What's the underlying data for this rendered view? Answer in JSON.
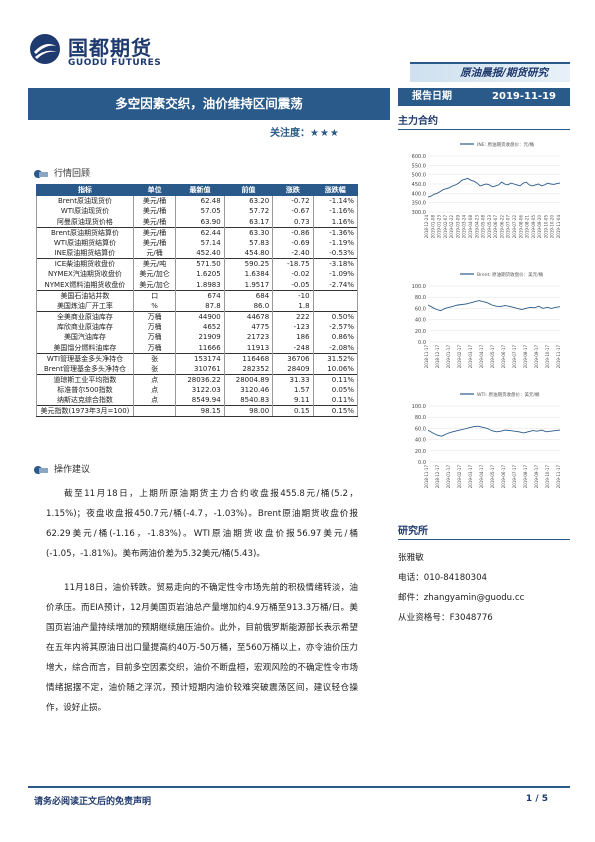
{
  "header": {
    "logo_cn": "国都期货",
    "logo_en": "GUODU FUTURES",
    "report_type": "原油晨报/期货研究",
    "title": "多空因素交织，油价维持区间震荡",
    "focus_label": "关注度：",
    "focus_stars": "★★★",
    "date_label": "报告日期",
    "date_value": "2019-11-19",
    "main_contract": "主力合约"
  },
  "sections": {
    "quote_review": "行情回顾",
    "operation": "操作建议",
    "researcher": "研究所"
  },
  "table": {
    "headers": [
      "指标",
      "单位",
      "最新值",
      "前值",
      "涨跌",
      "涨跌幅"
    ],
    "rows": [
      {
        "name": "Brent原油现货价",
        "unit": "美元/桶",
        "latest": "62.48",
        "prev": "63.20",
        "change": "-0.72",
        "pct": "-1.14%"
      },
      {
        "name": "WTI原油现货价",
        "unit": "美元/桶",
        "latest": "57.05",
        "prev": "57.72",
        "change": "-0.67",
        "pct": "-1.16%"
      },
      {
        "name": "阿曼原油现货价格",
        "unit": "美元/桶",
        "latest": "63.90",
        "prev": "63.17",
        "change": "0.73",
        "pct": "1.16%"
      },
      {
        "name": "Brent原油期货结算价",
        "unit": "美元/桶",
        "latest": "62.44",
        "prev": "63.30",
        "change": "-0.86",
        "pct": "-1.36%",
        "group_start": true
      },
      {
        "name": "WTI原油期货结算价",
        "unit": "美元/桶",
        "latest": "57.14",
        "prev": "57.83",
        "change": "-0.69",
        "pct": "-1.19%"
      },
      {
        "name": "INE原油期货结算价",
        "unit": "元/桶",
        "latest": "452.40",
        "prev": "454.80",
        "change": "-2.40",
        "pct": "-0.53%"
      },
      {
        "name": "ICE柴油期货收盘价",
        "unit": "美元/吨",
        "latest": "571.50",
        "prev": "590.25",
        "change": "-18.75",
        "pct": "-3.18%",
        "group_start": true
      },
      {
        "name": "NYMEX汽油期货收盘价",
        "unit": "美元/加仑",
        "latest": "1.6205",
        "prev": "1.6384",
        "change": "-0.02",
        "pct": "-1.09%"
      },
      {
        "name": "NYMEX燃料油期货收盘价",
        "unit": "美元/加仑",
        "latest": "1.8983",
        "prev": "1.9517",
        "change": "-0.05",
        "pct": "-2.74%"
      },
      {
        "name": "美国石油钻井数",
        "unit": "口",
        "latest": "674",
        "prev": "684",
        "change": "-10",
        "pct": "",
        "group_start": true
      },
      {
        "name": "美国炼油厂开工率",
        "unit": "%",
        "latest": "87.8",
        "prev": "86.0",
        "change": "1.8",
        "pct": ""
      },
      {
        "name": "全美商业原油库存",
        "unit": "万桶",
        "latest": "44900",
        "prev": "44678",
        "change": "222",
        "pct": "0.50%",
        "group_start": true
      },
      {
        "name": "库欣商业原油库存",
        "unit": "万桶",
        "latest": "4652",
        "prev": "4775",
        "change": "-123",
        "pct": "-2.57%"
      },
      {
        "name": "美国汽油库存",
        "unit": "万桶",
        "latest": "21909",
        "prev": "21723",
        "change": "186",
        "pct": "0.86%"
      },
      {
        "name": "美国馏分燃料油库存",
        "unit": "万桶",
        "latest": "11666",
        "prev": "11913",
        "change": "-248",
        "pct": "-2.08%"
      },
      {
        "name": "WTI管理基金多头净持仓",
        "unit": "张",
        "latest": "153174",
        "prev": "116468",
        "change": "36706",
        "pct": "31.52%",
        "group_start": true
      },
      {
        "name": "Brent管理基金多头净持仓",
        "unit": "张",
        "latest": "310761",
        "prev": "282352",
        "change": "28409",
        "pct": "10.06%"
      },
      {
        "name": "道琼斯工业平均指数",
        "unit": "点",
        "latest": "28036.22",
        "prev": "28004.89",
        "change": "31.33",
        "pct": "0.11%",
        "group_start": true
      },
      {
        "name": "标准普尔500指数",
        "unit": "点",
        "latest": "3122.03",
        "prev": "3120.46",
        "change": "1.57",
        "pct": "0.05%"
      },
      {
        "name": "纳斯达克综合指数",
        "unit": "点",
        "latest": "8549.94",
        "prev": "8540.83",
        "change": "9.11",
        "pct": "0.11%"
      },
      {
        "name": "美元指数(1973年3月=100)",
        "unit": "",
        "latest": "98.15",
        "prev": "98.00",
        "change": "0.15",
        "pct": "0.15%",
        "group_start": true
      }
    ]
  },
  "paragraphs": [
    "截至11月18日，上期所原油期货主力合约收盘报455.8元/桶(5.2，1.15%)；夜盘收盘报450.7元/桶(-4.7，-1.03%)。Brent原油期货收盘价报62.29美元/桶(-1.16，-1.83%)。WTI原油期货收盘价报56.97美元/桶(-1.05，-1.81%)。美布两油价差为5.32美元/桶(5.43)。",
    "11月18日，油价转跌。贸易走向的不确定性令市场先前的积极情绪转淡，油价承压。而EIA预计，12月美国页岩油总产量增加约4.9万桶至913.3万桶/日。美国页岩油产量持续增加的预期继续施压油价。此外，目前俄罗斯能源部长表示希望在五年内将其原油日出口量提高约40万-50万桶，至560万桶以上，亦令油价压力增大，综合而言，目前多空因素交织，油价不断盘桓，宏观风险的不确定性令市场情绪据摆不定，油价随之浮沉，预计短期内油价较难突破震荡区间，建议轻仓操作，设好止损。"
  ],
  "researcher": {
    "name": "张雅敏",
    "phone": "电话：010-84180304",
    "email": "邮件：zhangyamin@guodu.cc",
    "cert": "从业资格号：F3048776"
  },
  "footer": {
    "disclaimer": "请务必阅读正文后的免责声明",
    "page": "1 / 5"
  },
  "colors": {
    "accent": "#2a5a8a",
    "dark": "#1f3a6e"
  },
  "chart_data": [
    {
      "type": "line",
      "legend": "INE: 原油期货收盘价：元/桶",
      "ylim": [
        300,
        600
      ],
      "yticks": [
        "600.0",
        "550.0",
        "500.0",
        "450.0",
        "400.0",
        "350.0",
        "300.0"
      ],
      "xticks": [
        "2018-12-24",
        "2019-01-08",
        "2019-01-23",
        "2019-02-07",
        "2019-02-22",
        "2019-03-09",
        "2019-03-24",
        "2019-04-08",
        "2019-04-23",
        "2019-05-08",
        "2019-05-23",
        "2019-06-07",
        "2019-06-22",
        "2019-07-07",
        "2019-07-22",
        "2019-08-06",
        "2019-08-21",
        "2019-09-05",
        "2019-09-20",
        "2019-10-05",
        "2019-10-20",
        "2019-11-04"
      ],
      "values": [
        380,
        385,
        395,
        400,
        410,
        420,
        425,
        430,
        440,
        445,
        455,
        470,
        475,
        480,
        470,
        465,
        455,
        440,
        445,
        450,
        445,
        435,
        440,
        445,
        460,
        450,
        445,
        455,
        450,
        445,
        440,
        455,
        460,
        445,
        440,
        445,
        450,
        440,
        445,
        455,
        450,
        448,
        452,
        455
      ]
    },
    {
      "type": "line",
      "legend": "Brent: 原油期货收盘价：美元/桶",
      "ylim": [
        0,
        100
      ],
      "yticks": [
        "100.0",
        "80.0",
        "60.0",
        "40.0",
        "20.0",
        "0.0"
      ],
      "xticks": [
        "2018-11-17",
        "2018-12-17",
        "2019-01-17",
        "2019-02-17",
        "2019-03-17",
        "2019-04-17",
        "2019-05-17",
        "2019-06-17",
        "2019-07-17",
        "2019-08-17",
        "2019-09-17",
        "2019-10-17",
        "2019-11-17"
      ],
      "values": [
        66,
        62,
        58,
        56,
        60,
        62,
        64,
        66,
        67,
        68,
        70,
        72,
        74,
        72,
        70,
        66,
        64,
        63,
        65,
        64,
        62,
        60,
        58,
        60,
        62,
        61,
        64,
        60,
        62,
        60,
        62,
        63
      ]
    },
    {
      "type": "line",
      "legend": "WTI: 原油期货收盘价：美元/桶",
      "ylim": [
        0,
        100
      ],
      "yticks": [
        "100.0",
        "80.0",
        "60.0",
        "40.0",
        "20.0",
        "0.0"
      ],
      "xticks": [
        "2018-11-17",
        "2018-12-17",
        "2019-01-17",
        "2019-02-17",
        "2019-03-17",
        "2019-04-17",
        "2019-05-17",
        "2019-06-17",
        "2019-07-17",
        "2019-08-17",
        "2019-09-17",
        "2019-10-17",
        "2019-11-17"
      ],
      "values": [
        57,
        52,
        48,
        46,
        50,
        53,
        55,
        57,
        59,
        61,
        63,
        64,
        62,
        60,
        56,
        54,
        55,
        57,
        56,
        55,
        54,
        52,
        54,
        56,
        55,
        57,
        54,
        55,
        56,
        57
      ]
    }
  ]
}
